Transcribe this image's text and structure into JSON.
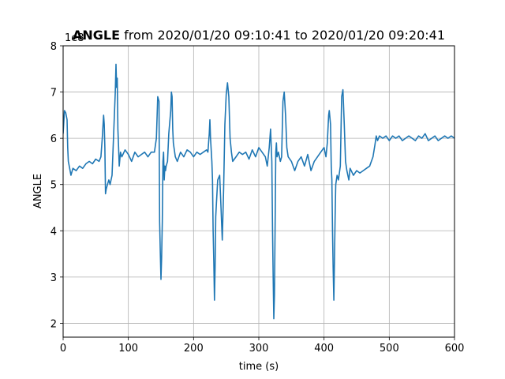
{
  "chart_data": {
    "type": "line",
    "title": {
      "bold": "ANGLE",
      "rest": " from 2020/01/20 09:10:41 to 2020/01/20 09:20:41"
    },
    "xlabel": "time (s)",
    "ylabel": "ANGLE",
    "offset_text": "1e8",
    "xlim": [
      0,
      600
    ],
    "ylim": [
      1.7,
      8.0
    ],
    "xticks": [
      0,
      100,
      200,
      300,
      400,
      500,
      600
    ],
    "yticks": [
      2,
      3,
      4,
      5,
      6,
      7,
      8
    ],
    "grid": true,
    "line_color": "#1f77b4",
    "series": [
      {
        "x": [
          0,
          2,
          4,
          6,
          7,
          8,
          10,
          12,
          15,
          20,
          25,
          30,
          35,
          40,
          45,
          50,
          55,
          58,
          60,
          62,
          63,
          64,
          65,
          66,
          68,
          70,
          72,
          75,
          78,
          80,
          81,
          82,
          83,
          84,
          85,
          86,
          88,
          90,
          95,
          100,
          105,
          110,
          115,
          120,
          125,
          130,
          135,
          140,
          143,
          145,
          147,
          148,
          149,
          150,
          151,
          152,
          153,
          154,
          155,
          156,
          157,
          158,
          160,
          162,
          165,
          166,
          167,
          168,
          169,
          170,
          172,
          175,
          180,
          185,
          190,
          195,
          200,
          205,
          210,
          215,
          220,
          222,
          224,
          225,
          226,
          228,
          229,
          230,
          231,
          232,
          233,
          234,
          235,
          237,
          240,
          242,
          244,
          246,
          248,
          250,
          252,
          254,
          256,
          258,
          260,
          265,
          270,
          275,
          280,
          285,
          290,
          295,
          300,
          305,
          310,
          313,
          316,
          318,
          320,
          321,
          322,
          323,
          324,
          325,
          326,
          327,
          328,
          330,
          333,
          335,
          337,
          339,
          341,
          343,
          345,
          350,
          355,
          360,
          365,
          370,
          375,
          380,
          385,
          390,
          395,
          400,
          403,
          405,
          407,
          408,
          410,
          411,
          412,
          413,
          414,
          415,
          416,
          417,
          418,
          420,
          422,
          425,
          427,
          429,
          431,
          433,
          435,
          438,
          440,
          445,
          450,
          455,
          460,
          465,
          470,
          475,
          478,
          480,
          482,
          485,
          490,
          495,
          500,
          505,
          510,
          515,
          520,
          525,
          530,
          535,
          540,
          545,
          550,
          555,
          560,
          565,
          570,
          575,
          580,
          585,
          590,
          595,
          600
        ],
        "y": [
          6.1,
          6.6,
          6.55,
          6.4,
          5.8,
          5.5,
          5.35,
          5.2,
          5.35,
          5.3,
          5.4,
          5.35,
          5.45,
          5.5,
          5.45,
          5.55,
          5.5,
          5.6,
          6.0,
          6.5,
          6.3,
          5.8,
          4.8,
          4.9,
          5.0,
          5.1,
          5.0,
          5.2,
          6.3,
          7.0,
          7.6,
          7.1,
          7.3,
          6.2,
          5.8,
          5.4,
          5.7,
          5.6,
          5.75,
          5.65,
          5.5,
          5.7,
          5.6,
          5.65,
          5.7,
          5.6,
          5.7,
          5.7,
          6.0,
          6.9,
          6.8,
          4.2,
          3.5,
          2.95,
          3.4,
          4.2,
          5.5,
          5.7,
          5.1,
          5.4,
          5.3,
          5.4,
          5.5,
          6.1,
          6.6,
          7.0,
          6.9,
          6.2,
          5.9,
          5.8,
          5.6,
          5.5,
          5.7,
          5.6,
          5.75,
          5.7,
          5.6,
          5.7,
          5.65,
          5.7,
          5.75,
          5.7,
          6.1,
          6.4,
          6.0,
          5.5,
          5.1,
          4.0,
          3.3,
          2.5,
          3.2,
          4.3,
          4.6,
          5.1,
          5.2,
          4.5,
          3.8,
          4.9,
          6.3,
          6.95,
          7.2,
          6.9,
          6.0,
          5.7,
          5.5,
          5.6,
          5.7,
          5.65,
          5.7,
          5.55,
          5.75,
          5.6,
          5.8,
          5.7,
          5.6,
          5.4,
          5.8,
          6.2,
          5.5,
          4.0,
          3.0,
          2.1,
          2.6,
          4.2,
          5.7,
          5.9,
          5.6,
          5.7,
          5.5,
          5.6,
          6.8,
          7.0,
          6.5,
          5.8,
          5.6,
          5.5,
          5.3,
          5.5,
          5.6,
          5.4,
          5.65,
          5.3,
          5.5,
          5.6,
          5.7,
          5.8,
          5.6,
          5.9,
          6.5,
          6.6,
          6.3,
          5.4,
          5.1,
          4.0,
          3.2,
          2.5,
          3.4,
          4.3,
          5.0,
          5.2,
          5.1,
          5.4,
          6.9,
          7.05,
          6.3,
          5.5,
          5.3,
          5.1,
          5.35,
          5.2,
          5.3,
          5.25,
          5.3,
          5.35,
          5.4,
          5.6,
          5.85,
          6.05,
          5.95,
          6.05,
          6.0,
          6.05,
          5.95,
          6.05,
          6.0,
          6.05,
          5.95,
          6.0,
          6.05,
          6.0,
          5.95,
          6.05,
          6.0,
          6.1,
          5.95,
          6.0,
          6.05,
          5.95,
          6.0,
          6.05,
          6.0,
          6.05,
          6.0
        ]
      }
    ]
  }
}
